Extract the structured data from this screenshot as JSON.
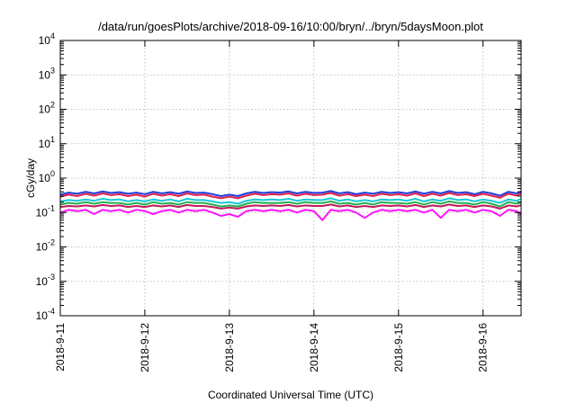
{
  "chart_data": {
    "type": "line",
    "title": "/data/run/goesPlots/archive/2018-09-16/10:00/bryn/../bryn/5daysMoon.plot",
    "xlabel": "Coordinated Universal Time (UTC)",
    "ylabel": "cGy/day",
    "x_tick_labels": [
      "2018-9-11",
      "2018-9-12",
      "2018-9-13",
      "2018-9-14",
      "2018-9-15",
      "2018-9-16"
    ],
    "xlim": [
      0,
      5.45
    ],
    "y_scale": "log",
    "ylim": [
      0.0001,
      10000
    ],
    "y_ticks": [
      {
        "base": "10",
        "exp": "4"
      },
      {
        "base": "10",
        "exp": "3"
      },
      {
        "base": "10",
        "exp": "2"
      },
      {
        "base": "10",
        "exp": "1"
      },
      {
        "base": "10",
        "exp": "0"
      },
      {
        "base": "10",
        "exp": "-1"
      },
      {
        "base": "10",
        "exp": "-2"
      },
      {
        "base": "10",
        "exp": "-3"
      },
      {
        "base": "10",
        "exp": "-4"
      }
    ],
    "grid": true,
    "x": [
      0.0,
      0.1,
      0.2,
      0.3,
      0.4,
      0.5,
      0.6,
      0.7,
      0.8,
      0.9,
      1.0,
      1.1,
      1.2,
      1.3,
      1.4,
      1.5,
      1.6,
      1.7,
      1.8,
      1.9,
      2.0,
      2.1,
      2.2,
      2.3,
      2.4,
      2.5,
      2.6,
      2.7,
      2.8,
      2.9,
      3.0,
      3.1,
      3.2,
      3.3,
      3.4,
      3.5,
      3.6,
      3.7,
      3.8,
      3.9,
      4.0,
      4.1,
      4.2,
      4.3,
      4.4,
      4.5,
      4.6,
      4.7,
      4.8,
      4.9,
      5.0,
      5.1,
      5.2,
      5.3,
      5.4,
      5.45
    ],
    "series": [
      {
        "color": "#1f3fe0",
        "values": [
          0.33,
          0.38,
          0.35,
          0.4,
          0.36,
          0.41,
          0.37,
          0.39,
          0.35,
          0.38,
          0.34,
          0.4,
          0.36,
          0.39,
          0.35,
          0.41,
          0.37,
          0.38,
          0.34,
          0.3,
          0.33,
          0.3,
          0.36,
          0.4,
          0.37,
          0.39,
          0.38,
          0.41,
          0.36,
          0.4,
          0.37,
          0.38,
          0.42,
          0.36,
          0.39,
          0.34,
          0.38,
          0.35,
          0.4,
          0.37,
          0.39,
          0.36,
          0.41,
          0.35,
          0.4,
          0.36,
          0.42,
          0.37,
          0.39,
          0.34,
          0.4,
          0.36,
          0.31,
          0.4,
          0.36,
          0.41
        ]
      },
      {
        "color": "#e0204a",
        "values": [
          0.29,
          0.33,
          0.3,
          0.35,
          0.31,
          0.36,
          0.32,
          0.34,
          0.3,
          0.33,
          0.29,
          0.35,
          0.31,
          0.34,
          0.3,
          0.36,
          0.32,
          0.33,
          0.29,
          0.26,
          0.29,
          0.26,
          0.31,
          0.35,
          0.32,
          0.34,
          0.33,
          0.36,
          0.31,
          0.35,
          0.32,
          0.33,
          0.37,
          0.31,
          0.34,
          0.3,
          0.33,
          0.3,
          0.35,
          0.32,
          0.34,
          0.31,
          0.36,
          0.3,
          0.35,
          0.31,
          0.37,
          0.32,
          0.34,
          0.3,
          0.35,
          0.31,
          0.27,
          0.35,
          0.31,
          0.36
        ]
      },
      {
        "color": "#16c8d8",
        "values": [
          0.21,
          0.23,
          0.22,
          0.24,
          0.22,
          0.25,
          0.23,
          0.24,
          0.21,
          0.23,
          0.21,
          0.24,
          0.22,
          0.24,
          0.21,
          0.25,
          0.23,
          0.23,
          0.21,
          0.19,
          0.2,
          0.18,
          0.22,
          0.24,
          0.23,
          0.24,
          0.23,
          0.25,
          0.22,
          0.24,
          0.23,
          0.23,
          0.26,
          0.22,
          0.24,
          0.21,
          0.23,
          0.21,
          0.24,
          0.23,
          0.24,
          0.22,
          0.25,
          0.21,
          0.24,
          0.22,
          0.26,
          0.23,
          0.24,
          0.21,
          0.24,
          0.22,
          0.19,
          0.24,
          0.22,
          0.25
        ]
      },
      {
        "color": "#22b14c",
        "values": [
          0.17,
          0.19,
          0.18,
          0.2,
          0.18,
          0.2,
          0.19,
          0.19,
          0.17,
          0.19,
          0.17,
          0.2,
          0.18,
          0.19,
          0.17,
          0.2,
          0.19,
          0.19,
          0.17,
          0.15,
          0.16,
          0.15,
          0.18,
          0.2,
          0.19,
          0.19,
          0.19,
          0.2,
          0.18,
          0.2,
          0.19,
          0.19,
          0.21,
          0.18,
          0.19,
          0.17,
          0.19,
          0.17,
          0.2,
          0.19,
          0.19,
          0.18,
          0.2,
          0.17,
          0.2,
          0.18,
          0.21,
          0.19,
          0.19,
          0.17,
          0.2,
          0.18,
          0.15,
          0.2,
          0.18,
          0.2
        ]
      },
      {
        "color": "#c2185b",
        "values": [
          0.145,
          0.155,
          0.15,
          0.16,
          0.15,
          0.165,
          0.155,
          0.16,
          0.145,
          0.155,
          0.145,
          0.16,
          0.15,
          0.16,
          0.145,
          0.165,
          0.155,
          0.155,
          0.145,
          0.13,
          0.14,
          0.13,
          0.15,
          0.16,
          0.155,
          0.16,
          0.155,
          0.165,
          0.15,
          0.16,
          0.155,
          0.155,
          0.17,
          0.15,
          0.16,
          0.145,
          0.155,
          0.145,
          0.16,
          0.155,
          0.16,
          0.15,
          0.165,
          0.145,
          0.16,
          0.15,
          0.17,
          0.155,
          0.16,
          0.145,
          0.16,
          0.15,
          0.13,
          0.16,
          0.15,
          0.165
        ]
      },
      {
        "color": "#ff10ff",
        "values": [
          0.1,
          0.12,
          0.11,
          0.12,
          0.09,
          0.12,
          0.11,
          0.12,
          0.1,
          0.12,
          0.11,
          0.09,
          0.11,
          0.12,
          0.1,
          0.12,
          0.11,
          0.12,
          0.1,
          0.08,
          0.09,
          0.075,
          0.11,
          0.12,
          0.11,
          0.12,
          0.11,
          0.12,
          0.1,
          0.12,
          0.11,
          0.06,
          0.12,
          0.11,
          0.12,
          0.1,
          0.07,
          0.1,
          0.12,
          0.11,
          0.12,
          0.11,
          0.12,
          0.1,
          0.12,
          0.07,
          0.12,
          0.11,
          0.12,
          0.1,
          0.12,
          0.11,
          0.08,
          0.12,
          0.11,
          0.09
        ]
      }
    ]
  }
}
